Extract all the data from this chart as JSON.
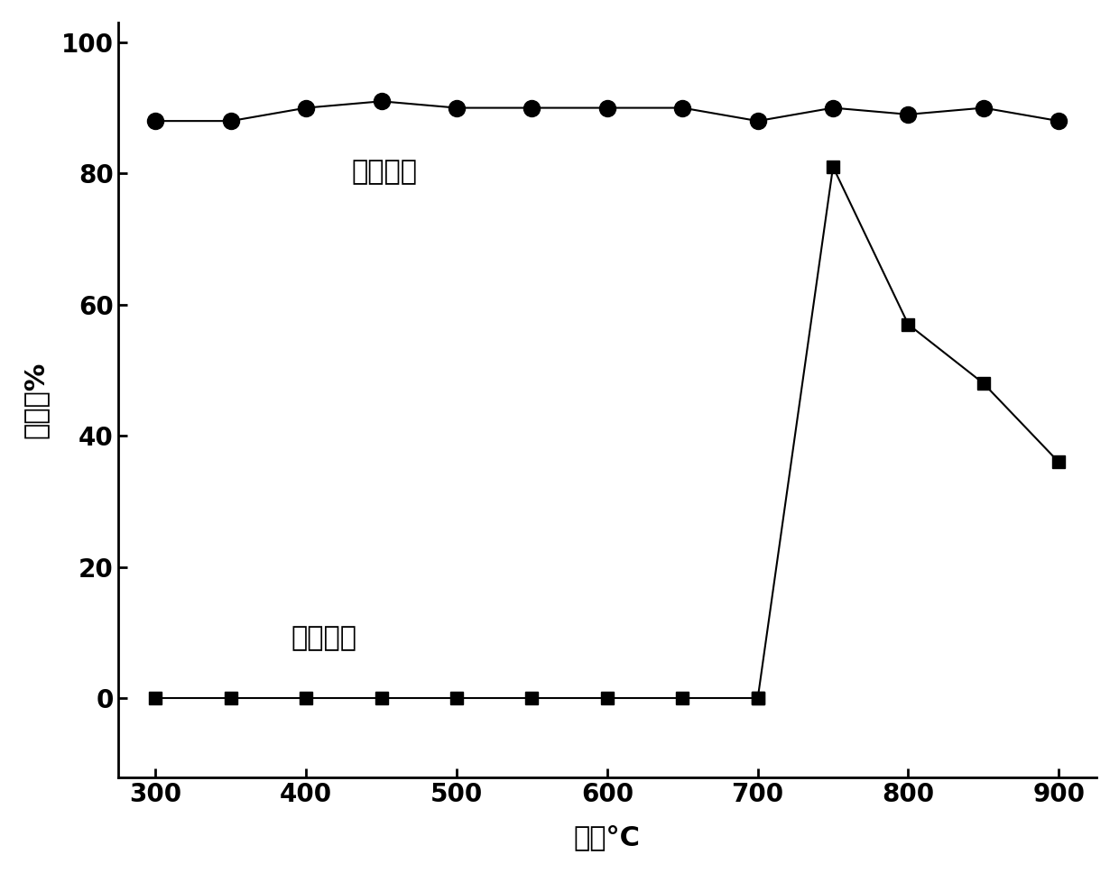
{
  "mn_catalyst_x": [
    300,
    350,
    400,
    450,
    500,
    550,
    600,
    650,
    700,
    750,
    800,
    850,
    900
  ],
  "mn_catalyst_y": [
    88,
    88,
    90,
    91,
    90,
    90,
    90,
    90,
    88,
    90,
    89,
    90,
    88
  ],
  "k_catalyst_x_flat": [
    300,
    350,
    400,
    450,
    500,
    550,
    600,
    650,
    700
  ],
  "k_catalyst_y_flat": [
    0,
    0,
    0,
    0,
    0,
    0,
    0,
    0,
    0
  ],
  "k_catalyst_x_peak": [
    700,
    750,
    800,
    850,
    900
  ],
  "k_catalyst_y_peak": [
    0,
    81,
    57,
    48,
    36
  ],
  "xlabel": "温度°C",
  "ylabel": "选择性%",
  "mn_label": "锶嵔化剂",
  "k_label": "钔嵔化剂",
  "xlim": [
    275,
    925
  ],
  "ylim": [
    -12,
    103
  ],
  "xticks": [
    300,
    400,
    500,
    600,
    700,
    800,
    900
  ],
  "yticks": [
    0,
    20,
    40,
    60,
    80,
    100
  ],
  "line_color": "#000000",
  "background_color": "#ffffff",
  "label_fontsize": 22,
  "tick_fontsize": 20,
  "annotation_fontsize": 22
}
